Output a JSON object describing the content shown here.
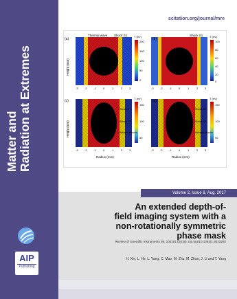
{
  "journal": {
    "title_line1": "Matter and",
    "title_line2": "Radiation at Extremes",
    "url": "scitation.org/journal/mre",
    "publisher": {
      "line1": "AIP",
      "line2": "Publishing"
    }
  },
  "issue": {
    "label": "Volume 2, Issue 6, Aug. 2017"
  },
  "figure": {
    "panels": [
      {
        "id": "(a)",
        "top_label": "Thermal wave",
        "shock_label": "Shock S1",
        "unit": "T (eV)",
        "ticks": [
          "200",
          "150",
          "100",
          "50",
          "0"
        ]
      },
      {
        "id": "(b)",
        "shock_label": "Shock S1",
        "unit": "T (eV)",
        "ticks": [
          "100",
          "80",
          "60",
          "40",
          "20",
          "0"
        ]
      },
      {
        "id": "(c)",
        "shock_labels": [
          "Shock S1",
          "Shock S2",
          "Attuned shocks"
        ],
        "unit": "T (eV)",
        "ticks": [
          "150",
          "100",
          "50"
        ]
      },
      {
        "id": "(d)",
        "shock_labels": [
          "Shock S1",
          "Shock S2",
          "Attuned shocks"
        ],
        "unit": "T (eV)",
        "ticks": [
          "150",
          "100",
          "50"
        ]
      }
    ],
    "y_axis_label": "Height (mm)",
    "x_axis_label": "Radius (mm)",
    "y_ticks": [
      "3",
      "2",
      "1",
      "0",
      "-1",
      "-2",
      "-3"
    ],
    "x_ticks": [
      "-3",
      "-2",
      "-1",
      "0",
      "1",
      "2",
      "3"
    ]
  },
  "article": {
    "title_line1": "An extended depth-of-",
    "title_line2": "field imaging system with a",
    "title_line3": "non-rotationally symmetric",
    "title_line4": "phase mask",
    "citation": "Review of Scientific Instruments 89, 103101 (2018); doi.org/10.1063/1.5023292",
    "authors": "H. Xie, L. He, L. Yang, C. Mao, M. Zhu, M. Zhao, J. Li and T. Yang"
  }
}
